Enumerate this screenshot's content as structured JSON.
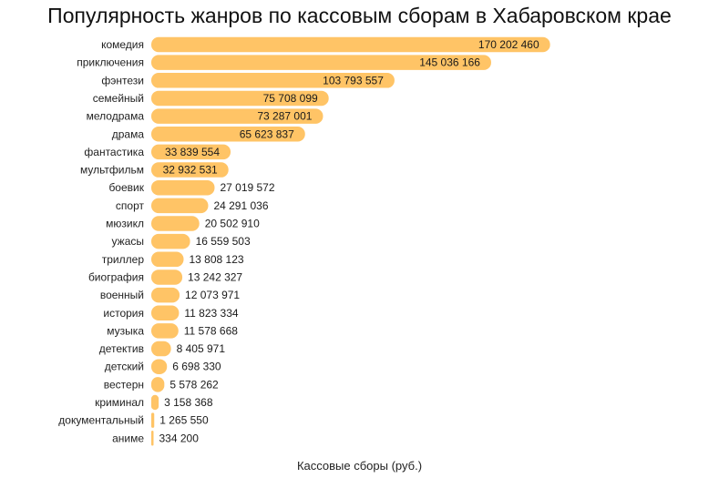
{
  "chart_data": {
    "type": "bar",
    "orientation": "horizontal",
    "title": "Популярность жанров по кассовым сборам в Хабаровском крае",
    "xlabel": "Кассовые сборы (руб.)",
    "ylabel": "",
    "xlim": [
      0,
      175000000
    ],
    "grid": false,
    "bar_color": "#FFC466",
    "categories": [
      "комедия",
      "приключения",
      "фэнтези",
      "семейный",
      "мелодрама",
      "драма",
      "фантастика",
      "мультфильм",
      "боевик",
      "спорт",
      "мюзикл",
      "ужасы",
      "триллер",
      "биография",
      "военный",
      "история",
      "музыка",
      "детектив",
      "детский",
      "вестерн",
      "криминал",
      "документальный",
      "аниме"
    ],
    "values": [
      170202460,
      145036166,
      103793557,
      75708099,
      73287001,
      65623837,
      33839554,
      32932531,
      27019572,
      24291036,
      20502910,
      16559503,
      13808123,
      13242327,
      12073971,
      11823334,
      11578668,
      8405971,
      6698330,
      5578262,
      3158368,
      1265550,
      334200
    ],
    "value_labels": [
      "170 202 460",
      "145 036 166",
      "103 793 557",
      "75 708 099",
      "73 287 001",
      "65 623 837",
      "33 839 554",
      "32 932 531",
      "27 019 572",
      "24 291 036",
      "20 502 910",
      "16 559 503",
      "13 808 123",
      "13 242 327",
      "12 073 971",
      "11 823 334",
      "11 578 668",
      "8 405 971",
      "6 698 330",
      "5 578 262",
      "3 158 368",
      "1 265 550",
      "334 200"
    ]
  }
}
